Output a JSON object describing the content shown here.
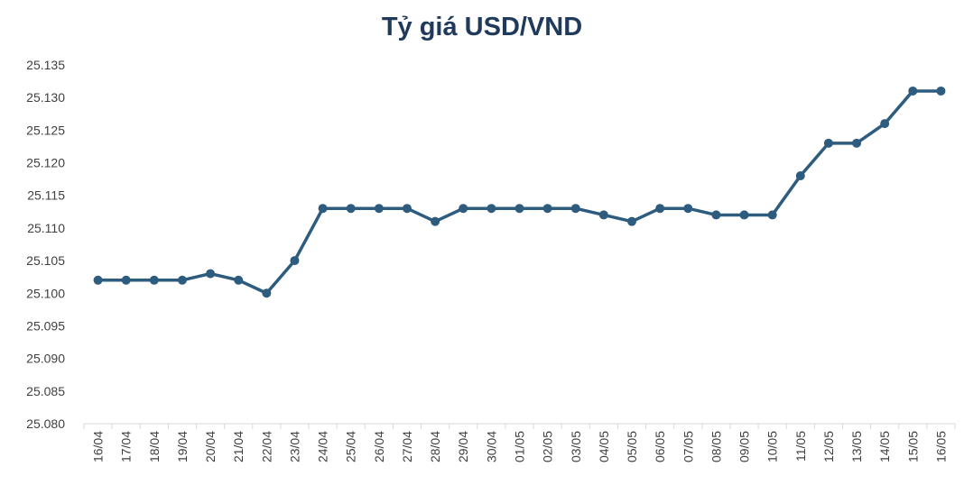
{
  "chart_data": {
    "type": "line",
    "title": "Tỷ giá USD/VND",
    "xlabel": "",
    "ylabel": "",
    "categories": [
      "16/04",
      "17/04",
      "18/04",
      "19/04",
      "20/04",
      "21/04",
      "22/04",
      "23/04",
      "24/04",
      "25/04",
      "26/04",
      "27/04",
      "28/04",
      "29/04",
      "30/04",
      "01/05",
      "02/05",
      "03/05",
      "04/05",
      "05/05",
      "06/05",
      "07/05",
      "08/05",
      "09/05",
      "10/05",
      "11/05",
      "12/05",
      "13/05",
      "14/05",
      "15/05",
      "16/05"
    ],
    "series": [
      {
        "values": [
          25.102,
          25.102,
          25.102,
          25.102,
          25.103,
          25.102,
          25.1,
          25.105,
          25.113,
          25.113,
          25.113,
          25.113,
          25.111,
          25.113,
          25.113,
          25.113,
          25.113,
          25.113,
          25.112,
          25.111,
          25.113,
          25.113,
          25.112,
          25.112,
          25.112,
          25.118,
          25.123,
          25.123,
          25.126,
          25.131,
          25.131
        ]
      }
    ],
    "ylim": [
      25.08,
      25.135
    ],
    "yticks": [
      "25.080",
      "25.085",
      "25.090",
      "25.095",
      "25.100",
      "25.105",
      "25.110",
      "25.115",
      "25.120",
      "25.125",
      "25.130",
      "25.135"
    ],
    "grid": false,
    "legend": "none",
    "colors": {
      "line": "#2e5c7e",
      "title": "#1f3a5a",
      "axis": "#d9d9d9",
      "text": "#404040"
    }
  }
}
